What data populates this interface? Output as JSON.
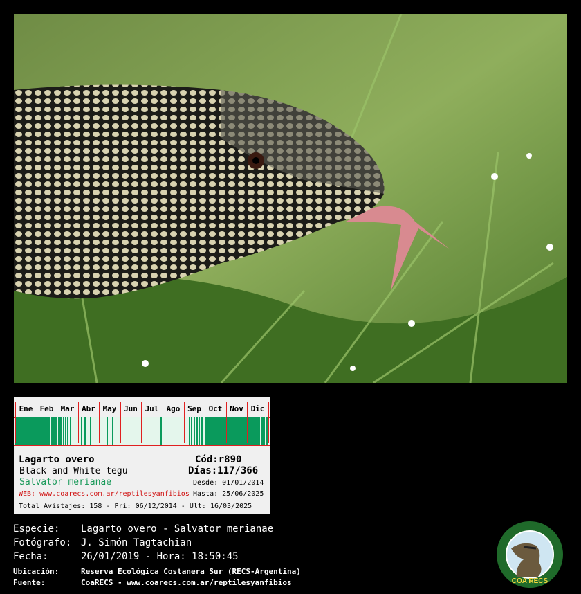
{
  "card": {
    "months": [
      "Ene",
      "Feb",
      "Mar",
      "Abr",
      "May",
      "Jun",
      "Jul",
      "Ago",
      "Sep",
      "Oct",
      "Nov",
      "Dic"
    ],
    "observed_days": [
      1,
      2,
      3,
      4,
      5,
      6,
      8,
      10,
      12,
      13,
      15,
      17,
      18,
      19,
      20,
      21,
      22,
      24,
      25,
      27,
      28,
      30,
      31,
      32,
      33,
      34,
      36,
      38,
      40,
      41,
      43,
      44,
      45,
      47,
      49,
      50,
      53,
      56,
      57,
      58,
      59,
      60,
      63,
      65,
      67,
      70,
      73,
      76,
      80,
      96,
      101,
      109,
      133,
      141,
      211,
      252,
      255,
      259,
      263,
      266,
      270,
      275,
      276,
      277,
      279,
      280,
      282,
      283,
      285,
      286,
      287,
      289,
      290,
      292,
      294,
      295,
      297,
      299,
      300,
      302,
      304,
      306,
      307,
      309,
      310,
      311,
      313,
      314,
      316,
      318,
      319,
      321,
      322,
      324,
      326,
      327,
      329,
      331,
      333,
      334,
      336,
      337,
      338,
      339,
      340,
      341,
      343,
      345,
      347,
      349,
      351,
      353,
      356,
      358,
      360,
      363,
      365
    ],
    "bar_color": "#0a9a5c",
    "line_color": "#e02020",
    "common_name": "Lagarto overo",
    "english_name": "Black and White tegu",
    "scientific_name": "Salvator merianae",
    "web": "WEB: www.coarecs.com.ar/reptilesyanfibios",
    "code": "Cód:r890",
    "days": "Días:117/366",
    "desde": "Desde: 01/01/2014",
    "hasta": "Hasta: 25/06/2025",
    "totals": "Total Avistajes: 158 - Pri: 06/12/2014 - Ult: 16/03/2025"
  },
  "info": {
    "especie_label": "Especie:",
    "especie": "Lagarto overo - Salvator merianae",
    "fotografo_label": "Fotógrafo:",
    "fotografo": "J. Simón Tagtachian",
    "fecha_label": "Fecha:",
    "fecha": "26/01/2019 - Hora: 18:50:45",
    "ubicacion_label": "Ubicación:",
    "ubicacion": "Reserva Ecológica Costanera Sur (RECS-Argentina)",
    "fuente_label": "Fuente:",
    "fuente": "CoaRECS - www.coarecs.com.ar/reptilesyanfibios"
  },
  "logo": {
    "text": "COA RECS",
    "ring_text": "CLUB DE OBSERVADORES DE AVES DE LA RESERVA ECOLÓGICA COSTANERA SUR"
  }
}
